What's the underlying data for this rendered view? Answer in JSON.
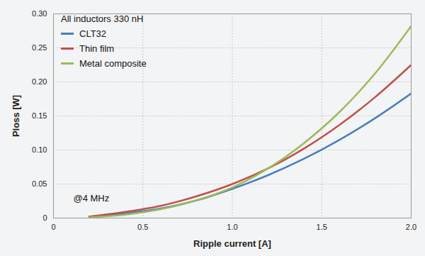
{
  "chart_data": {
    "type": "line",
    "title": "All inductors 330 nH",
    "x_label": "Ripple current [A]",
    "y_label": "Ploss [W]",
    "x": [
      0.2,
      0.4,
      0.6,
      0.8,
      1.0,
      1.2,
      1.4,
      1.6,
      1.8,
      2.0
    ],
    "series": [
      {
        "name": "CLT32",
        "color": "#4a7ebb",
        "values": [
          0.002,
          0.007,
          0.014,
          0.026,
          0.043,
          0.063,
          0.087,
          0.115,
          0.147,
          0.183
        ]
      },
      {
        "name": "Thin film",
        "color": "#c0504d",
        "values": [
          0.002,
          0.009,
          0.018,
          0.032,
          0.05,
          0.073,
          0.102,
          0.137,
          0.178,
          0.225
        ]
      },
      {
        "name": "Metal composite",
        "color": "#9bbb59",
        "values": [
          0.001,
          0.005,
          0.013,
          0.026,
          0.045,
          0.073,
          0.11,
          0.156,
          0.213,
          0.282
        ]
      }
    ],
    "xlim": [
      0,
      2.0
    ],
    "ylim": [
      0,
      0.3
    ],
    "xticks": [
      0,
      0.5,
      {
        "value": 1.0,
        "label": "1.0"
      },
      1.5,
      {
        "value": 2.0,
        "label": "2.0"
      }
    ],
    "yticks": [
      0,
      0.05,
      {
        "value": 0.1,
        "label": "0.10"
      },
      0.15,
      {
        "value": 0.2,
        "label": "0.20"
      },
      0.25,
      {
        "value": 0.3,
        "label": "0.30"
      }
    ],
    "grid": true,
    "legend": "top-left",
    "annotations": [
      {
        "text": "@4 MHz"
      }
    ]
  }
}
